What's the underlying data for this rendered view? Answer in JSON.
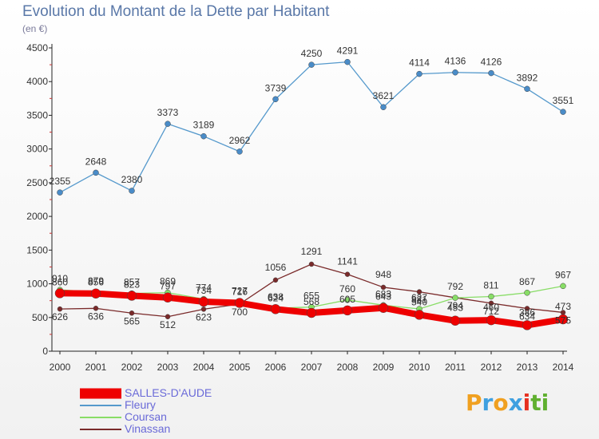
{
  "title": "Evolution du Montant de la Dette par Habitant",
  "unit": "(en €)",
  "logo": {
    "letters": [
      "P",
      "r",
      "o",
      "x",
      "i",
      "t",
      "i"
    ],
    "colors": [
      "#f0a020",
      "#3fa0e0",
      "#f0a020",
      "#3fa0e0",
      "#e63020",
      "#60b030",
      "#60b030"
    ]
  },
  "chart_data": {
    "type": "line",
    "x": [
      "2000",
      "2001",
      "2002",
      "2003",
      "2004",
      "2005",
      "2006",
      "2007",
      "2008",
      "2009",
      "2010",
      "2011",
      "2012",
      "2013",
      "2014"
    ],
    "ylim": [
      0,
      4500
    ],
    "yticks": [
      0,
      500,
      1000,
      1500,
      2000,
      2500,
      3000,
      3500,
      4000,
      4500
    ],
    "grid": false,
    "legend_position": "bottom-left",
    "series": [
      {
        "name": "Vinassan",
        "color": "#7a2a2a",
        "width": 1.3,
        "marker_r": 3,
        "marker_color": "#7a2a2a",
        "values": [
          626,
          636,
          565,
          512,
          623,
          700,
          1056,
          1291,
          1141,
          948,
          881,
          794,
          712,
          634,
          575
        ]
      },
      {
        "name": "Coursan",
        "color": "#88dd66",
        "width": 1.3,
        "marker_r": 3.5,
        "marker_color": "#88dd66",
        "values": [
          910,
          879,
          857,
          869,
          774,
          727,
          638,
          655,
          760,
          683,
          627,
          792,
          811,
          867,
          967
        ]
      },
      {
        "name": "Fleury",
        "color": "#5599cc",
        "width": 1.3,
        "marker_r": 3.5,
        "marker_color": "#4a8cc8",
        "values": [
          2355,
          2648,
          2380,
          3373,
          3189,
          2962,
          3739,
          4250,
          4291,
          3621,
          4114,
          4136,
          4126,
          3892,
          3551
        ]
      },
      {
        "name": "SALLES-D'AUDE",
        "color": "#ee0000",
        "width": 8,
        "marker_r": 6,
        "marker_color": "#ee0000",
        "values": [
          860,
          856,
          823,
          797,
          734,
          716,
          624,
          568,
          605,
          643,
          540,
          453,
          460,
          386,
          473
        ]
      }
    ]
  }
}
